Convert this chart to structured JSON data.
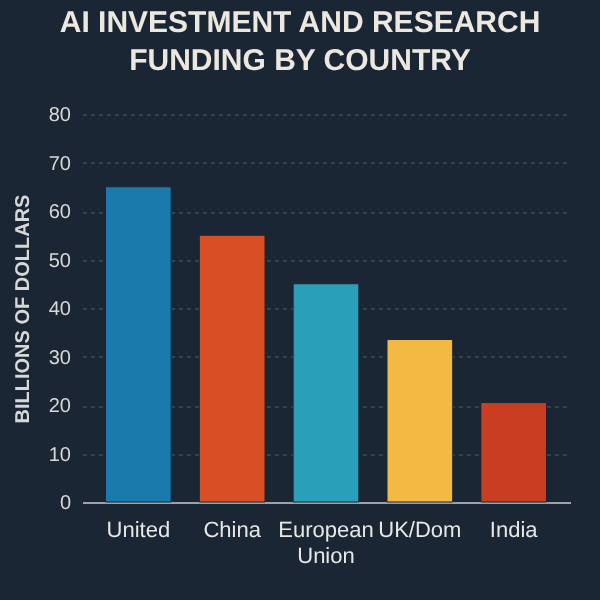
{
  "chart_data": {
    "type": "bar",
    "title": [
      "AI INVESTMENT AND RESEARCH",
      "FUNDING BY COUNTRY"
    ],
    "ylabel": "BILLIONS OF DOLLARS",
    "categories": [
      "United",
      "China",
      "European Union",
      "UK/Dom",
      "India"
    ],
    "values": [
      65,
      55,
      45,
      33.5,
      20.5
    ],
    "colors": [
      "#1a7aab",
      "#d94f25",
      "#2a9fb8",
      "#f4b942",
      "#c93d20"
    ],
    "ylim": [
      0,
      80
    ],
    "yticks": [
      0,
      10,
      20,
      30,
      40,
      50,
      60,
      70,
      80
    ],
    "grid": "y"
  }
}
